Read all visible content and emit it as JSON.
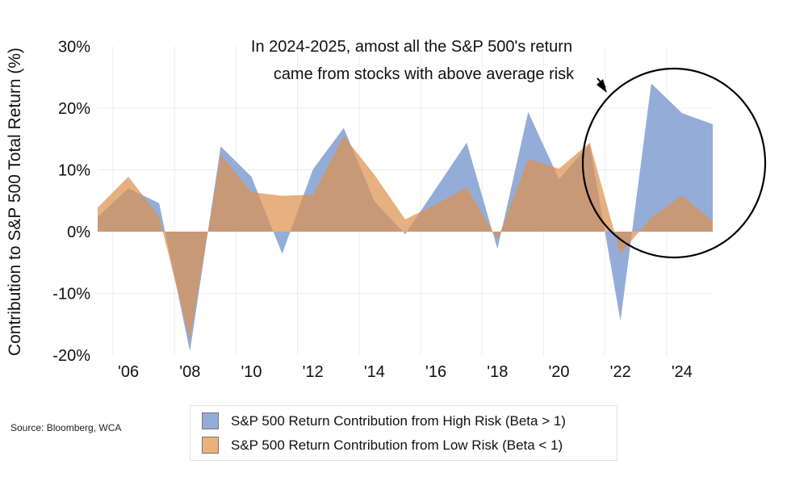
{
  "chart_data": {
    "type": "area",
    "title": "",
    "ylabel": "Contribution to S&P 500 Total Return (%)",
    "xlabel": "",
    "x": [
      2005,
      2006,
      2007,
      2008,
      2009,
      2010,
      2011,
      2012,
      2013,
      2014,
      2015,
      2016,
      2017,
      2018,
      2019,
      2020,
      2021,
      2022,
      2023,
      2024,
      2025
    ],
    "series": [
      {
        "name": "S&P 500 Return Contribution from High Risk (Beta > 1)",
        "color": "#94ADD8",
        "values": [
          2.4,
          7.0,
          4.6,
          -19.4,
          13.8,
          8.9,
          -3.6,
          10.1,
          16.8,
          4.9,
          -0.4,
          7.0,
          14.4,
          -2.8,
          19.4,
          8.5,
          14.2,
          -14.5,
          24.0,
          19.2,
          17.4
        ]
      },
      {
        "name": "S&P 500 Return Contribution from Low Risk (Beta < 1)",
        "color": "#E9AE78",
        "values": [
          3.9,
          8.9,
          2.4,
          -17.6,
          12.5,
          6.4,
          5.8,
          6.0,
          15.5,
          9.2,
          2.0,
          4.4,
          7.2,
          -1.3,
          11.8,
          10.2,
          14.4,
          -3.6,
          2.3,
          5.9,
          1.7
        ]
      }
    ],
    "ylim": [
      -20,
      30
    ],
    "yticks": [
      30,
      20,
      10,
      0,
      -10,
      -20
    ],
    "ytick_labels": [
      "30%",
      "20%",
      "10%",
      "0%",
      "-10%",
      "-20%"
    ],
    "xticks": [
      2006,
      2008,
      2010,
      2012,
      2014,
      2016,
      2018,
      2020,
      2022,
      2024
    ],
    "xtick_labels": [
      "'06",
      "'08",
      "'10",
      "'12",
      "'14",
      "'16",
      "'18",
      "'20",
      "'22",
      "'24"
    ],
    "grid": true,
    "legend_position": "bottom-center",
    "annotation": {
      "line1": "In 2024-2025, amost all the S&P 500's return",
      "line2": "came from stocks with above average risk",
      "highlight": "circle around 2022-2025"
    }
  },
  "legend": {
    "items": [
      {
        "label": "S&P 500 Return Contribution from High Risk (Beta > 1)",
        "color": "#94ADD8"
      },
      {
        "label": "S&P 500 Return Contribution from Low Risk (Beta < 1)",
        "color": "#EBB17C"
      }
    ]
  },
  "source": "Source: Bloomberg, WCA"
}
